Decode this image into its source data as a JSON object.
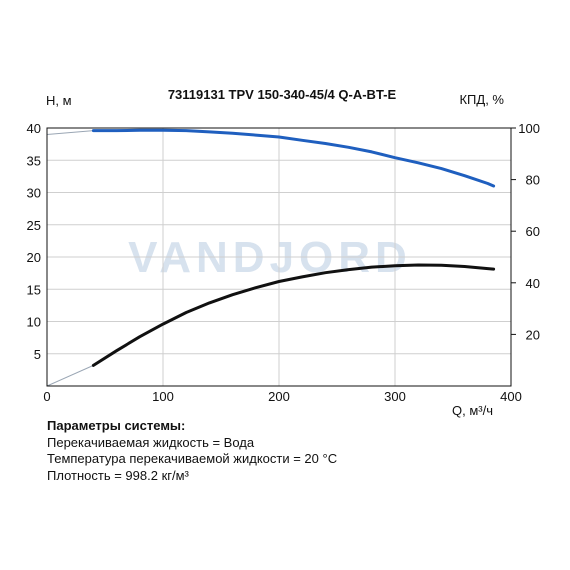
{
  "chart_data": {
    "type": "line",
    "title": "73119131 TPV 150-340-45/4 Q-A-BT-E",
    "xlabel": "Q, м³/ч",
    "ylabel_left": "H, м",
    "ylabel_right": "КПД, %",
    "xlim": [
      0,
      400
    ],
    "ylim_left": [
      0,
      40
    ],
    "ylim_right": [
      0,
      100
    ],
    "x_ticks": [
      "0",
      "100",
      "200",
      "300",
      "400"
    ],
    "y_left_ticks": [
      "5",
      "10",
      "15",
      "20",
      "25",
      "30",
      "35",
      "40"
    ],
    "y_right_ticks": [
      "20",
      "40",
      "60",
      "80",
      "100"
    ],
    "grid": true,
    "watermark": "VANDJORD",
    "series": [
      {
        "name": "H",
        "axis": "left",
        "color": "#1f5fbf",
        "x": [
          40,
          60,
          80,
          100,
          120,
          140,
          160,
          180,
          200,
          220,
          240,
          260,
          280,
          300,
          320,
          340,
          360,
          380,
          385
        ],
        "y": [
          39.6,
          39.6,
          39.65,
          39.65,
          39.6,
          39.4,
          39.2,
          38.9,
          38.6,
          38.1,
          37.6,
          37.0,
          36.3,
          35.4,
          34.6,
          33.7,
          32.6,
          31.4,
          31.0
        ]
      },
      {
        "name": "КПД",
        "axis": "right",
        "color": "#111111",
        "x": [
          40,
          60,
          80,
          100,
          120,
          140,
          160,
          180,
          200,
          220,
          240,
          260,
          280,
          300,
          320,
          340,
          360,
          380,
          385
        ],
        "y": [
          8.0,
          13.7,
          19.1,
          24.0,
          28.5,
          32.2,
          35.4,
          38.1,
          40.5,
          42.3,
          43.9,
          45.1,
          46.1,
          46.6,
          46.9,
          46.8,
          46.3,
          45.5,
          45.3
        ]
      }
    ],
    "extension": {
      "color": "#9aa6b4",
      "h_x": [
        0,
        40
      ],
      "h_y": [
        39.0,
        39.6
      ],
      "eff_x": [
        0,
        40
      ],
      "eff_y": [
        0,
        8.0
      ]
    }
  },
  "params": {
    "title": "Параметры системы:",
    "lines": [
      "Перекачиваемая жидкость = Вода",
      "Температура перекачиваемой жидкости = 20 °C",
      "Плотность = 998.2 кг/м³"
    ]
  }
}
